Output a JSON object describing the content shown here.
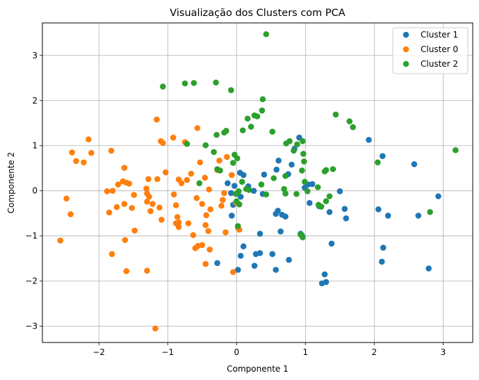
{
  "chart_data": {
    "type": "scatter",
    "title": "Visualização dos Clusters com PCA",
    "xlabel": "Componente 1",
    "ylabel": "Componente 2",
    "xlim": [
      -2.82,
      3.43
    ],
    "ylim": [
      -3.36,
      3.72
    ],
    "xticks": [
      -2,
      -1,
      0,
      1,
      2,
      3
    ],
    "yticks": [
      -3,
      -2,
      -1,
      0,
      1,
      2,
      3
    ],
    "grid": true,
    "legend_position": "top-right",
    "series": [
      {
        "name": "Cluster 1",
        "color": "#1f77b4",
        "points": [
          [
            1.92,
            1.13
          ],
          [
            2.58,
            0.59
          ],
          [
            2.12,
            0.77
          ],
          [
            0.91,
            1.18
          ],
          [
            0.84,
            0.93
          ],
          [
            0.8,
            0.58
          ],
          [
            0.61,
            0.67
          ],
          [
            0.58,
            0.47
          ],
          [
            0.75,
            0.37
          ],
          [
            0.4,
            0.36
          ],
          [
            0.1,
            0.35
          ],
          [
            0.05,
            0.4
          ],
          [
            -0.13,
            0.17
          ],
          [
            -0.03,
            0.11
          ],
          [
            0.17,
            0.1
          ],
          [
            0.25,
            0.0
          ],
          [
            -0.08,
            -0.05
          ],
          [
            0.06,
            -0.13
          ],
          [
            1.04,
            0.14
          ],
          [
            1.1,
            0.15
          ],
          [
            0.99,
            0.07
          ],
          [
            1.5,
            -0.01
          ],
          [
            1.06,
            -0.27
          ],
          [
            1.2,
            -0.34
          ],
          [
            1.35,
            -0.47
          ],
          [
            1.57,
            -0.4
          ],
          [
            1.59,
            -0.61
          ],
          [
            2.06,
            -0.41
          ],
          [
            2.2,
            -0.55
          ],
          [
            2.64,
            -0.55
          ],
          [
            2.93,
            -0.12
          ],
          [
            -0.05,
            -0.31
          ],
          [
            -0.07,
            -0.55
          ],
          [
            0.38,
            -0.07
          ],
          [
            0.57,
            -0.51
          ],
          [
            0.6,
            -0.44
          ],
          [
            0.64,
            -0.9
          ],
          [
            0.66,
            -0.53
          ],
          [
            0.71,
            -0.57
          ],
          [
            0.34,
            -0.95
          ],
          [
            0.93,
            -0.95
          ],
          [
            0.95,
            -0.99
          ],
          [
            0.1,
            -1.23
          ],
          [
            0.06,
            -1.44
          ],
          [
            0.28,
            -1.4
          ],
          [
            0.34,
            -1.38
          ],
          [
            0.52,
            -1.4
          ],
          [
            1.38,
            -1.17
          ],
          [
            2.13,
            -1.26
          ],
          [
            2.11,
            -1.57
          ],
          [
            2.79,
            -1.72
          ],
          [
            1.28,
            -1.85
          ],
          [
            1.3,
            -2.02
          ],
          [
            1.24,
            -2.05
          ],
          [
            -0.28,
            -1.6
          ],
          [
            0.02,
            -1.75
          ],
          [
            0.26,
            -1.66
          ],
          [
            0.57,
            -1.75
          ],
          [
            0.76,
            -1.53
          ]
        ]
      },
      {
        "name": "Cluster 0",
        "color": "#ff7f0e",
        "points": [
          [
            -2.39,
            0.85
          ],
          [
            -2.33,
            0.66
          ],
          [
            -2.22,
            0.63
          ],
          [
            -2.15,
            1.14
          ],
          [
            -2.11,
            0.84
          ],
          [
            -1.82,
            0.89
          ],
          [
            -1.88,
            -0.01
          ],
          [
            -1.8,
            0.0
          ],
          [
            -1.85,
            -0.48
          ],
          [
            -1.74,
            -0.36
          ],
          [
            -1.72,
            0.14
          ],
          [
            -1.65,
            0.21
          ],
          [
            -1.63,
            0.51
          ],
          [
            -1.6,
            0.18
          ],
          [
            -1.56,
            0.16
          ],
          [
            -1.52,
            -0.38
          ],
          [
            -1.63,
            -0.29
          ],
          [
            -1.49,
            -0.09
          ],
          [
            -1.48,
            -0.88
          ],
          [
            -1.62,
            -1.09
          ],
          [
            -1.6,
            -1.78
          ],
          [
            -1.81,
            -1.4
          ],
          [
            -2.47,
            -0.17
          ],
          [
            -2.41,
            -0.52
          ],
          [
            -2.56,
            -1.1
          ],
          [
            -1.31,
            0.05
          ],
          [
            -1.3,
            -0.06
          ],
          [
            -1.28,
            0.26
          ],
          [
            -1.27,
            -0.13
          ],
          [
            -1.25,
            -0.45
          ],
          [
            -1.22,
            -0.29
          ],
          [
            -1.3,
            -0.24
          ],
          [
            -1.15,
            0.26
          ],
          [
            -1.16,
            1.58
          ],
          [
            -1.1,
            1.1
          ],
          [
            -1.07,
            1.06
          ],
          [
            -1.03,
            0.41
          ],
          [
            -1.09,
            -0.64
          ],
          [
            -1.12,
            -0.37
          ],
          [
            -1.3,
            -1.77
          ],
          [
            -1.18,
            -3.05
          ],
          [
            -0.92,
            1.18
          ],
          [
            -0.84,
            0.25
          ],
          [
            -0.8,
            0.17
          ],
          [
            -0.75,
            1.08
          ],
          [
            -0.72,
            0.24
          ],
          [
            -0.66,
            0.38
          ],
          [
            -0.91,
            -0.08
          ],
          [
            -0.88,
            -0.32
          ],
          [
            -0.86,
            -0.58
          ],
          [
            -0.84,
            -0.7
          ],
          [
            -0.88,
            -0.72
          ],
          [
            -0.84,
            -0.8
          ],
          [
            -0.7,
            -0.72
          ],
          [
            -0.63,
            -0.98
          ],
          [
            -0.56,
            -1.22
          ],
          [
            -0.6,
            -1.27
          ],
          [
            -0.5,
            -1.2
          ],
          [
            -0.45,
            -1.62
          ],
          [
            -0.39,
            -1.3
          ],
          [
            -0.57,
            1.39
          ],
          [
            -0.4,
            0.03
          ],
          [
            -0.53,
            0.63
          ],
          [
            -0.46,
            0.29
          ],
          [
            -0.58,
            -0.16
          ],
          [
            -0.5,
            -0.29
          ],
          [
            -0.44,
            -0.54
          ],
          [
            -0.45,
            -0.76
          ],
          [
            -0.41,
            -0.89
          ],
          [
            -0.38,
            -0.41
          ],
          [
            -0.25,
            0.67
          ],
          [
            -0.28,
            0.46
          ],
          [
            -0.18,
            -0.05
          ],
          [
            -0.22,
            -0.33
          ],
          [
            -0.16,
            -0.92
          ],
          [
            -0.14,
            0.75
          ],
          [
            -0.07,
            0.35
          ],
          [
            -0.01,
            -0.26
          ],
          [
            0.02,
            -0.82
          ],
          [
            0.04,
            -0.86
          ],
          [
            -0.05,
            -1.8
          ],
          [
            -0.2,
            -0.2
          ]
        ]
      },
      {
        "name": "Cluster 2",
        "color": "#2ca02c",
        "points": [
          [
            0.43,
            3.47
          ],
          [
            -1.07,
            2.31
          ],
          [
            -0.75,
            2.38
          ],
          [
            -0.62,
            2.39
          ],
          [
            -0.3,
            2.4
          ],
          [
            -0.08,
            2.23
          ],
          [
            0.38,
            2.03
          ],
          [
            0.37,
            1.78
          ],
          [
            0.3,
            1.65
          ],
          [
            0.26,
            1.67
          ],
          [
            0.16,
            1.6
          ],
          [
            0.21,
            1.42
          ],
          [
            0.52,
            1.31
          ],
          [
            0.09,
            1.34
          ],
          [
            -0.15,
            1.33
          ],
          [
            -0.18,
            1.29
          ],
          [
            -0.29,
            1.24
          ],
          [
            -0.72,
            1.04
          ],
          [
            -0.45,
            1.01
          ],
          [
            -0.33,
            0.86
          ],
          [
            -0.03,
            0.8
          ],
          [
            0.01,
            0.72
          ],
          [
            -0.05,
            0.62
          ],
          [
            -0.28,
            0.48
          ],
          [
            -0.24,
            0.45
          ],
          [
            -0.54,
            0.17
          ],
          [
            0.08,
            0.2
          ],
          [
            0.14,
            0.04
          ],
          [
            0.18,
            0.02
          ],
          [
            0.03,
            -0.01
          ],
          [
            -0.01,
            -0.07
          ],
          [
            0.0,
            -0.23
          ],
          [
            0.04,
            -0.3
          ],
          [
            0.02,
            -0.78
          ],
          [
            0.36,
            0.14
          ],
          [
            0.43,
            -0.08
          ],
          [
            0.54,
            0.28
          ],
          [
            0.71,
            0.33
          ],
          [
            0.69,
            0.04
          ],
          [
            0.71,
            -0.06
          ],
          [
            0.72,
            1.05
          ],
          [
            0.77,
            1.1
          ],
          [
            0.83,
            0.89
          ],
          [
            0.88,
            1.03
          ],
          [
            0.96,
            1.1
          ],
          [
            0.97,
            0.82
          ],
          [
            0.98,
            0.65
          ],
          [
            0.95,
            0.45
          ],
          [
            0.99,
            0.2
          ],
          [
            1.03,
            -0.01
          ],
          [
            0.87,
            -0.07
          ],
          [
            0.93,
            -0.97
          ],
          [
            0.96,
            -1.03
          ],
          [
            1.18,
            0.08
          ],
          [
            1.19,
            -0.31
          ],
          [
            1.23,
            -0.35
          ],
          [
            1.3,
            -0.23
          ],
          [
            1.35,
            -0.12
          ],
          [
            1.28,
            0.43
          ],
          [
            1.3,
            0.46
          ],
          [
            1.4,
            0.48
          ],
          [
            1.44,
            1.69
          ],
          [
            1.64,
            1.54
          ],
          [
            1.69,
            1.41
          ],
          [
            2.05,
            0.63
          ],
          [
            2.81,
            -0.47
          ],
          [
            3.18,
            0.9
          ]
        ]
      }
    ]
  }
}
